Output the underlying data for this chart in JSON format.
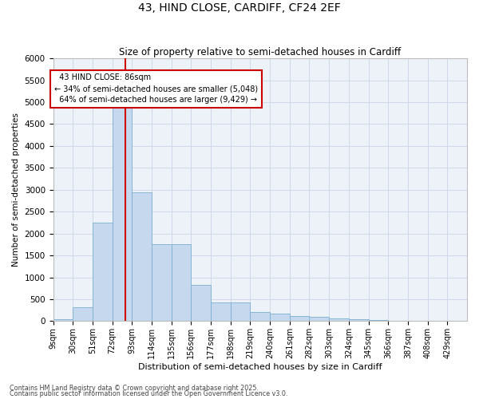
{
  "title": "43, HIND CLOSE, CARDIFF, CF24 2EF",
  "subtitle": "Size of property relative to semi-detached houses in Cardiff",
  "xlabel": "Distribution of semi-detached houses by size in Cardiff",
  "ylabel": "Number of semi-detached properties",
  "footnote1": "Contains HM Land Registry data © Crown copyright and database right 2025.",
  "footnote2": "Contains public sector information licensed under the Open Government Licence v3.0.",
  "property_size": 86,
  "property_label": "43 HIND CLOSE: 86sqm",
  "smaller_pct": "34%",
  "smaller_count": "5,048",
  "larger_pct": "64%",
  "larger_count": "9,429",
  "bin_labels": [
    "9sqm",
    "30sqm",
    "51sqm",
    "72sqm",
    "93sqm",
    "114sqm",
    "135sqm",
    "156sqm",
    "177sqm",
    "198sqm",
    "219sqm",
    "240sqm",
    "261sqm",
    "282sqm",
    "303sqm",
    "324sqm",
    "345sqm",
    "366sqm",
    "387sqm",
    "408sqm",
    "429sqm"
  ],
  "bin_left_edges": [
    9,
    30,
    51,
    72,
    93,
    114,
    135,
    156,
    177,
    198,
    219,
    240,
    261,
    282,
    303,
    324,
    345,
    366,
    387,
    408,
    429
  ],
  "bar_heights": [
    50,
    310,
    2250,
    5000,
    2950,
    1750,
    1750,
    820,
    420,
    420,
    200,
    165,
    115,
    95,
    60,
    40,
    30,
    15,
    8,
    3,
    2
  ],
  "bar_color": "#c5d8ed",
  "bar_edge_color": "#7aafd4",
  "vline_color": "#cc0000",
  "annotation_box_color": "#cc0000",
  "grid_color": "#d0d9e8",
  "bg_color": "#edf2f9",
  "ylim": [
    0,
    6000
  ],
  "yticks": [
    0,
    500,
    1000,
    1500,
    2000,
    2500,
    3000,
    3500,
    4000,
    4500,
    5000,
    5500,
    6000
  ]
}
